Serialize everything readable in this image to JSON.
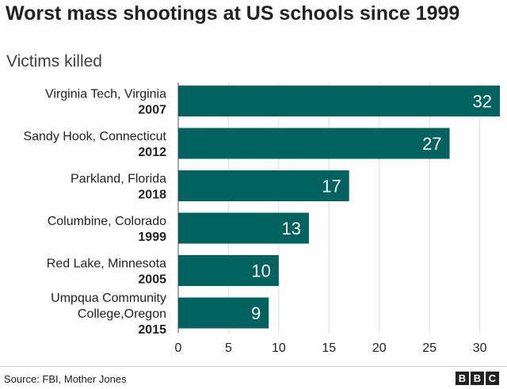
{
  "title": "Worst mass shootings at US schools since 1999",
  "subtitle": "Victims killed",
  "source": "Source: FBI, Mother Jones",
  "logo": {
    "letters": [
      "B",
      "B",
      "C"
    ]
  },
  "colors": {
    "bar": "#00635f",
    "grid": "#dddddd",
    "text": "#222222"
  },
  "chart_data": {
    "type": "bar",
    "orientation": "horizontal",
    "title": "Worst mass shootings at US schools since 1999",
    "subtitle": "Victims killed",
    "categories": [
      {
        "name_lines": [
          "Virginia Tech, Virginia"
        ],
        "year": "2007"
      },
      {
        "name_lines": [
          "Sandy Hook, Connecticut"
        ],
        "year": "2012"
      },
      {
        "name_lines": [
          "Parkland, Florida"
        ],
        "year": "2018"
      },
      {
        "name_lines": [
          "Columbine, Colorado"
        ],
        "year": "1999"
      },
      {
        "name_lines": [
          "Red Lake, Minnesota"
        ],
        "year": "2005"
      },
      {
        "name_lines": [
          "Umpqua Community",
          "College,Oregon"
        ],
        "year": "2015"
      }
    ],
    "values": [
      32,
      27,
      17,
      13,
      10,
      9
    ],
    "data_labels": [
      "32",
      "27",
      "17",
      "13",
      "10",
      "9"
    ],
    "xticks": [
      "0",
      "5",
      "10",
      "15",
      "20",
      "25",
      "30"
    ],
    "xtick_values": [
      0,
      5,
      10,
      15,
      20,
      25,
      30
    ],
    "xlim": [
      0,
      32
    ],
    "grid": "vertical",
    "legend": "none"
  }
}
